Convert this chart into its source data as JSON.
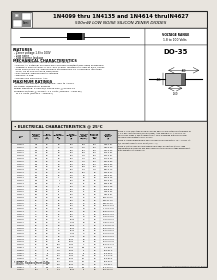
{
  "title_line1": "1N4099 thru 1N4135 and 1N4614 thruIN4627",
  "title_line2": "500mW LOW NOISE SILICON ZENER DIODES",
  "bg_color": "#e8e4de",
  "border_color": "#222222",
  "features_title": "FEATURES",
  "features": [
    "- Zener voltage 1.8 to 100V",
    "- Low noise",
    "- Low reverse leakage"
  ],
  "mech_title": "MECHANICAL CHARACTERISTICS",
  "mech_items": [
    "- CASE: Hermetically sealed glass case 182-35",
    "- FINISH: All external surfaces are corrosion resistant and leads solderable",
    "- THERMAL RESISTANCE: 0.71C, 50C Typical junctions to lead at 3/16 inches",
    "  from body in DO-35. Mechanically standard DO-35 is normally less than",
    "  100C, 90 at one distance from body",
    "- PIN ANODE: Marked end to cathode",
    "- WEIGHT: 0.03g",
    "- MOUNTING POSITION: Any"
  ],
  "max_title": "MAXIMUM RATINGS",
  "max_items": [
    "Junction and Storage Temperature: -65C to +200C",
    "DC Power Dissipation: 500mW",
    "Power Derating: 3.33mW/C above 50C @ no DO-35",
    "Forward Voltage @ 200mA: 1.1 Volts (1N4099 - 1N4135)",
    "   B 1.1 Volts (1N4614 - 1N4627)"
  ],
  "elec_title": "ELECTRICAL CHARACTERISTICS @ 25°C",
  "voltage_range": "VOLTAGE RANGE\n1.8 to 100 Volts",
  "package": "DO-35",
  "note1": "NOTE 1: The 4000 type numbers shown above have a standard tolerance of +-5% per cent standard (see package). Also available in +-2% and 1% tolerances, suffix C and D respectively. Vz is measured with pulse equal to 50ms equilibrated to 25C, 60 sec.",
  "note2": "NOTE 2: Zener impedance is derived from measurements of Izk = 80 Bz. Izt w/2 current equal to 10% of Izt (Izm = 1).",
  "note3": "NOTE 3: Rated upon 500mW maximum power dissipation at 75C, lead temperature all bonures has been made 50 this higher voltage assessment with operation at higher vol.",
  "jedec_note": "* JEDEC Replacement Data",
  "col_headers": [
    "TYPE\nNO.",
    "NOMINAL\nZENER\nVOLTAGE\nVz(V)",
    "TEST\nCURRENT\nIzt\n(mA)",
    "ZENER\nIMPEDANCE\nZzt\n(Ω)",
    "ZENER\nIMPEDANCE\nZzk\n(Ω)",
    "MAX DC\nZENER\nCURRENT\nIzm(mA)",
    "LEAKAGE\nCURRENT\nIR(μA)\nMax",
    "ZENER\nVOLTAGE\nRANGE\n(V)"
  ],
  "table_data": [
    [
      "1N4099",
      "1.8",
      "20",
      "20",
      "800",
      "278",
      "500",
      "1.65-1.97"
    ],
    [
      "1N4100",
      "2.0",
      "20",
      "25",
      "750",
      "250",
      "500",
      "1.80-2.20"
    ],
    [
      "1N4101",
      "2.2",
      "20",
      "30",
      "700",
      "227",
      "500",
      "1.97-2.43"
    ],
    [
      "1N4102",
      "2.4",
      "20",
      "30",
      "700",
      "208",
      "500",
      "2.16-2.64"
    ],
    [
      "1N4103",
      "2.7",
      "20",
      "30",
      "700",
      "185",
      "500",
      "2.43-2.97"
    ],
    [
      "1N4104",
      "3.0",
      "20",
      "30",
      "700",
      "167",
      "500",
      "2.70-3.30"
    ],
    [
      "1N4105",
      "3.3",
      "20",
      "28",
      "700",
      "152",
      "500",
      "2.97-3.63"
    ],
    [
      "1N4106",
      "3.6",
      "20",
      "24",
      "700",
      "139",
      "500",
      "3.24-3.96"
    ],
    [
      "1N4107",
      "3.9",
      "20",
      "23",
      "600",
      "128",
      "500",
      "3.51-4.29"
    ],
    [
      "1N4108",
      "4.3",
      "20",
      "22",
      "600",
      "116",
      "150",
      "3.87-4.73"
    ],
    [
      "1N4109",
      "4.7",
      "20",
      "19",
      "500",
      "106",
      "10",
      "4.23-5.17"
    ],
    [
      "1N4110",
      "5.1",
      "20",
      "17",
      "550",
      "98",
      "10",
      "4.59-5.61"
    ],
    [
      "1N4111",
      "5.6",
      "20",
      "11",
      "600",
      "89",
      "10",
      "5.04-6.16"
    ],
    [
      "1N4112",
      "6.0",
      "20",
      "7",
      "600",
      "83",
      "10",
      "5.40-6.60"
    ],
    [
      "1N4113",
      "6.2",
      "20",
      "7",
      "600",
      "81",
      "10",
      "5.58-6.82"
    ],
    [
      "1N4114",
      "6.8",
      "20",
      "5",
      "700",
      "74",
      "10",
      "6.12-7.48"
    ],
    [
      "1N4115",
      "7.5",
      "20",
      "6",
      "700",
      "67",
      "10",
      "6.75-8.25"
    ],
    [
      "1N4116",
      "8.2",
      "20",
      "8",
      "700",
      "61",
      "10",
      "7.38-9.02"
    ],
    [
      "1N4117",
      "8.7",
      "20",
      "8",
      "700",
      "57",
      "10",
      "7.83-9.57"
    ],
    [
      "1N4118",
      "9.1",
      "20",
      "10",
      "700",
      "55",
      "10",
      "8.19-10.01"
    ],
    [
      "1N4119",
      "10",
      "20",
      "17",
      "700",
      "50",
      "10",
      "9.00-11.00"
    ],
    [
      "1N4120",
      "11",
      "20",
      "22",
      "700",
      "45",
      "10",
      "9.90-12.10"
    ],
    [
      "1N4121",
      "12",
      "20",
      "30",
      "700",
      "42",
      "10",
      "10.80-13.20"
    ],
    [
      "1N4122",
      "13",
      "20",
      "13",
      "700",
      "38",
      "10",
      "11.70-14.30"
    ],
    [
      "1N4123",
      "15",
      "20",
      "16",
      "700",
      "33",
      "10",
      "13.50-16.50"
    ],
    [
      "1N4124",
      "16",
      "20",
      "17",
      "700",
      "31",
      "10",
      "14.40-17.60"
    ],
    [
      "1N4125",
      "18",
      "20",
      "21",
      "900",
      "28",
      "10",
      "16.20-19.80"
    ],
    [
      "1N4126",
      "20",
      "20",
      "25",
      "1000",
      "25",
      "10",
      "18.00-22.00"
    ],
    [
      "1N4127",
      "22",
      "20",
      "29",
      "1100",
      "23",
      "10",
      "19.80-24.20"
    ],
    [
      "1N4128",
      "24",
      "20",
      "33",
      "1200",
      "21",
      "10",
      "21.60-26.40"
    ],
    [
      "1N4129",
      "27",
      "20",
      "41",
      "1300",
      "19",
      "10",
      "24.30-29.70"
    ],
    [
      "1N4130",
      "30",
      "20",
      "49",
      "1400",
      "17",
      "10",
      "27.00-33.00"
    ],
    [
      "1N4131",
      "33",
      "20",
      "58",
      "1600",
      "15",
      "10",
      "29.70-36.30"
    ],
    [
      "1N4132",
      "36",
      "20",
      "70",
      "1800",
      "14",
      "10",
      "32.40-39.60"
    ],
    [
      "1N4133",
      "39",
      "20",
      "80",
      "2000",
      "13",
      "10",
      "35.10-42.90"
    ],
    [
      "1N4134",
      "43",
      "20",
      "93",
      "2200",
      "12",
      "10",
      "38.70-47.30"
    ],
    [
      "1N4135",
      "47",
      "20",
      "105",
      "2500",
      "11",
      "10",
      "42.30-51.70"
    ],
    [
      "1N4614",
      "51",
      "9.8",
      "135",
      "3000",
      "9.8",
      "10",
      "45.9-56.1"
    ],
    [
      "1N4615",
      "56",
      "9",
      "150",
      "3500",
      "9",
      "10",
      "50.4-61.6"
    ],
    [
      "1N4616",
      "62",
      "8",
      "185",
      "4000",
      "8",
      "10",
      "55.8-68.2"
    ],
    [
      "1N4617",
      "68",
      "7.5",
      "230",
      "4500",
      "7.4",
      "10",
      "61.2-74.8"
    ],
    [
      "1N4618",
      "75",
      "6.7",
      "270",
      "5000",
      "6.7",
      "10",
      "67.5-82.5"
    ],
    [
      "1N4619",
      "82",
      "6.1",
      "330",
      "5500",
      "6.1",
      "10",
      "73.8-90.2"
    ],
    [
      "1N4620",
      "87",
      "5.8",
      "370",
      "6000",
      "5.7",
      "10",
      "78.3-95.7"
    ],
    [
      "1N4621",
      "91",
      "5.5",
      "410",
      "6500",
      "5.5",
      "10",
      "81.9-100.1"
    ],
    [
      "1N4622",
      "100",
      "5",
      "454",
      "7000",
      "5",
      "10",
      "90.0-110.0"
    ]
  ]
}
